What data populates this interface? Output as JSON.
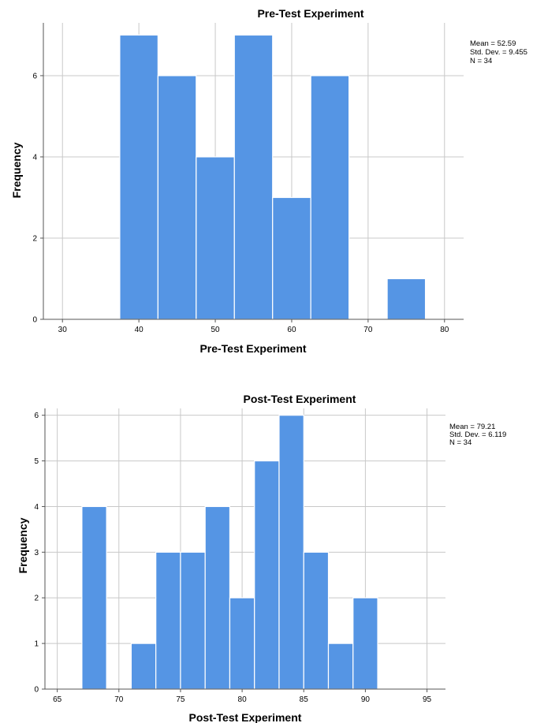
{
  "chart_data": [
    {
      "type": "bar",
      "title": "Pre-Test Experiment",
      "xlabel": "Pre-Test Experiment",
      "ylabel": "Frequency",
      "xlim": [
        27.5,
        82.5
      ],
      "ylim": [
        0,
        7.3
      ],
      "x_ticks": [
        30,
        40,
        50,
        60,
        70,
        80
      ],
      "y_ticks": [
        0,
        2,
        4,
        6
      ],
      "bin_width": 5,
      "bins": [
        {
          "start": 37.5,
          "value": 7
        },
        {
          "start": 42.5,
          "value": 6
        },
        {
          "start": 47.5,
          "value": 4
        },
        {
          "start": 52.5,
          "value": 7
        },
        {
          "start": 57.5,
          "value": 3
        },
        {
          "start": 62.5,
          "value": 6
        },
        {
          "start": 72.5,
          "value": 1
        }
      ],
      "color": "#5595e4",
      "grid": true,
      "stats": [
        "Mean = 52.59",
        "Std. Dev. = 9.455",
        "N = 34"
      ],
      "stats_placement": "top-right"
    },
    {
      "type": "bar",
      "title": "Post-Test Experiment",
      "xlabel": "Post-Test Experiment",
      "ylabel": "Frequency",
      "xlim": [
        64,
        96.5
      ],
      "ylim": [
        0,
        6.15
      ],
      "x_ticks": [
        65,
        70,
        75,
        80,
        85,
        90,
        95
      ],
      "y_ticks": [
        0,
        1,
        2,
        3,
        4,
        5,
        6
      ],
      "bin_width": 2,
      "bins": [
        {
          "start": 67,
          "value": 4
        },
        {
          "start": 71,
          "value": 1
        },
        {
          "start": 73,
          "value": 3
        },
        {
          "start": 75,
          "value": 3
        },
        {
          "start": 77,
          "value": 4
        },
        {
          "start": 79,
          "value": 2
        },
        {
          "start": 81,
          "value": 5
        },
        {
          "start": 83,
          "value": 6
        },
        {
          "start": 85,
          "value": 3
        },
        {
          "start": 87,
          "value": 1
        },
        {
          "start": 89,
          "value": 2
        }
      ],
      "color": "#5595e4",
      "grid": true,
      "stats": [
        "Mean = 79.21",
        "Std. Dev. = 6.119",
        "N = 34"
      ],
      "stats_placement": "top-right"
    }
  ]
}
